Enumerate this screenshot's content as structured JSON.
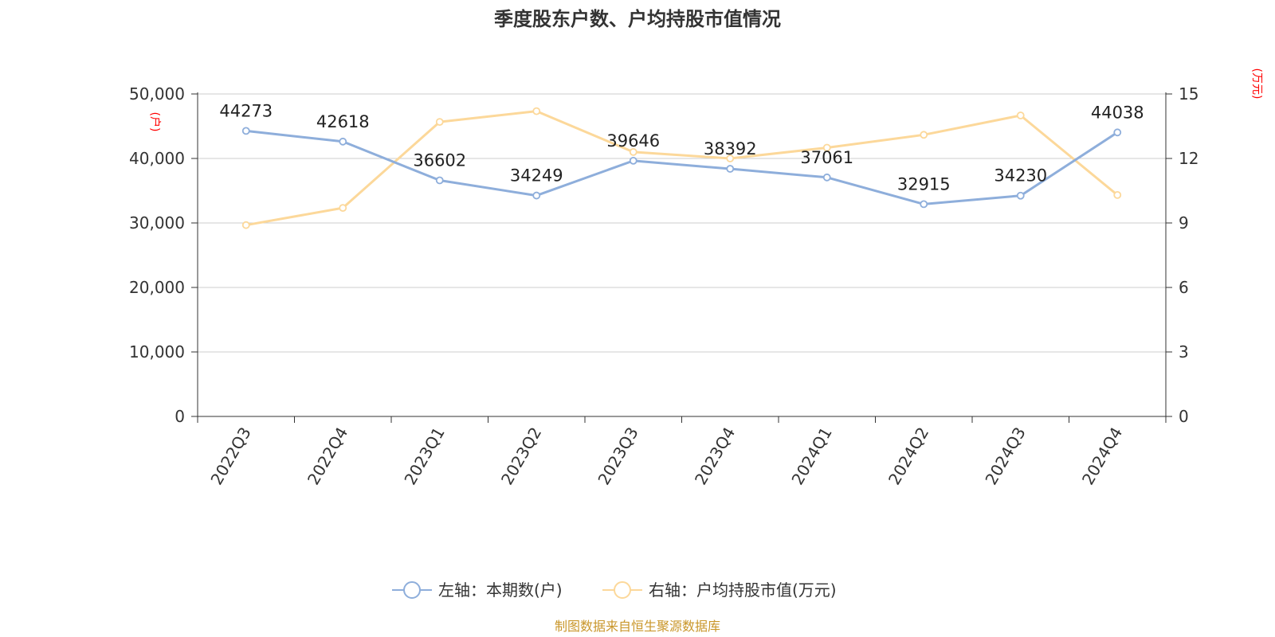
{
  "chart_data": {
    "type": "line",
    "title": "季度股东户数、户均持股市值情况",
    "categories": [
      "2022Q3",
      "2022Q4",
      "2023Q1",
      "2023Q2",
      "2023Q3",
      "2023Q4",
      "2024Q1",
      "2024Q2",
      "2024Q3",
      "2024Q4"
    ],
    "y_left": {
      "unit_label": "(户)",
      "ylim": [
        0,
        50000
      ],
      "tick_labels": [
        "0",
        "10,000",
        "20,000",
        "30,000",
        "40,000",
        "50,000"
      ],
      "ticks": [
        0,
        10000,
        20000,
        30000,
        40000,
        50000
      ]
    },
    "y_right": {
      "unit_label": "(万元)",
      "ylim": [
        0,
        15
      ],
      "tick_labels": [
        "0",
        "3",
        "6",
        "9",
        "12",
        "15"
      ],
      "ticks": [
        0,
        3,
        6,
        9,
        12,
        15
      ]
    },
    "grid": true,
    "legend_position": "bottom",
    "series": [
      {
        "name": "左轴：本期数(户)",
        "axis": "left",
        "color": "#8eaedb",
        "values": [
          44273,
          42618,
          36602,
          34249,
          39646,
          38392,
          37061,
          32915,
          34230,
          44038
        ],
        "data_labels": [
          "44273",
          "42618",
          "36602",
          "34249",
          "39646",
          "38392",
          "37061",
          "32915",
          "34230",
          "44038"
        ]
      },
      {
        "name": "右轴：户均持股市值(万元)",
        "axis": "right",
        "color": "#fcd89a",
        "values": [
          8.9,
          9.7,
          13.7,
          14.2,
          12.3,
          12.0,
          12.5,
          13.1,
          14.0,
          10.3
        ]
      }
    ]
  },
  "source_text": "制图数据来自恒生聚源数据库",
  "colors": {
    "axis_unit_text": "#ff0000",
    "source_text": "#c9962a",
    "grid": "#cccccc",
    "axis": "#333333",
    "text": "#333333"
  }
}
